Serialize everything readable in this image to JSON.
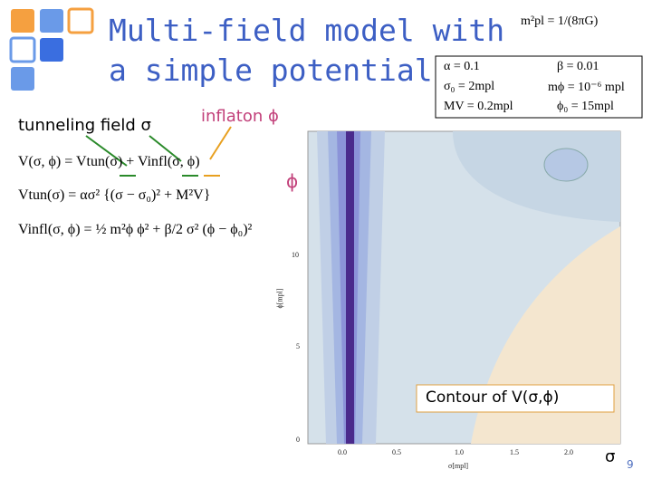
{
  "slide": {
    "title": [
      "Multi-field model with",
      "a simple potential"
    ],
    "planck": "m²pl = 1/(8πG)",
    "params": [
      "α = 0.1",
      "β = 0.01",
      "σ₀ = 2mpl",
      "mϕ = 10⁻⁶ mpl",
      "MV = 0.2mpl",
      "ϕ₀ = 15mpl"
    ],
    "labels": {
      "tunneling": "tunneling field σ",
      "inflaton": "inflaton ϕ",
      "phi": "ϕ",
      "contour": "Contour of V(σ,ϕ)",
      "sigma": "σ"
    },
    "equations": [
      "V(σ, ϕ) = Vtun(σ) + Vinfl(σ, ϕ)",
      "Vtun(σ) = ασ² {(σ − σ₀)² + M²V}",
      "Vinfl(σ, ϕ) = ½ m²ϕ ϕ² + β/2 σ² (ϕ − ϕ₀)²"
    ],
    "plot": {
      "xticks": [
        "0.0",
        "0.5",
        "1.0",
        "1.5",
        "2.0"
      ],
      "yticks": [
        "0",
        "5",
        "10"
      ],
      "xlabel": "σ[mpl]",
      "ylabel": "ϕ[mpl]"
    },
    "page": "9"
  }
}
